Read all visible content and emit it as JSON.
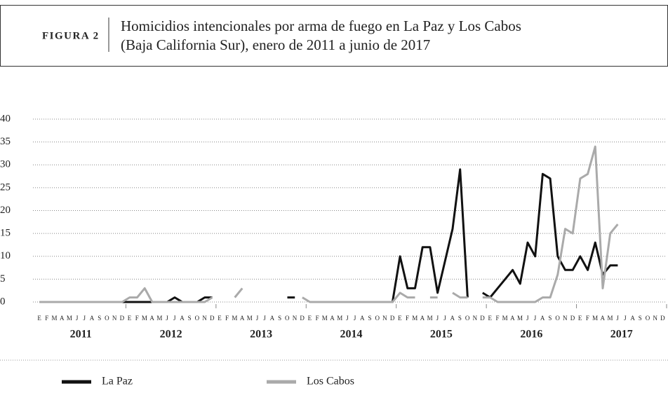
{
  "chart_data": {
    "type": "line",
    "figure_label": "FIGURA 2",
    "title": [
      "Homicidios intencionales por arma de fuego en La Paz y Los Cabos",
      "(Baja California Sur), enero de 2011 a junio de 2017"
    ],
    "years": [
      "2011",
      "2012",
      "2013",
      "2014",
      "2015",
      "2016",
      "2017"
    ],
    "month_labels": [
      "E",
      "F",
      "M",
      "A",
      "M",
      "J",
      "J",
      "A",
      "S",
      "O",
      "N",
      "D"
    ],
    "ylim": [
      0,
      40
    ],
    "yticks": [
      0,
      5,
      10,
      15,
      20,
      25,
      30,
      35,
      40
    ],
    "grid": true,
    "series": [
      {
        "name": "La Paz",
        "color": "#111111",
        "values": [
          0,
          0,
          0,
          0,
          0,
          0,
          0,
          0,
          0,
          0,
          0,
          0,
          0,
          0,
          0,
          0,
          0,
          0,
          1,
          0,
          0,
          0,
          1,
          1,
          null,
          null,
          null,
          null,
          null,
          null,
          null,
          null,
          null,
          1,
          1,
          null,
          0,
          0,
          0,
          0,
          0,
          0,
          0,
          0,
          0,
          0,
          0,
          0,
          10,
          3,
          3,
          12,
          12,
          2,
          9,
          16,
          29,
          1,
          null,
          2,
          1,
          3,
          5,
          7,
          4,
          13,
          10,
          28,
          27,
          10,
          7,
          7,
          10,
          7,
          13,
          6,
          8,
          8
        ]
      },
      {
        "name": "Los Cabos",
        "color": "#aaaaaa",
        "values": [
          0,
          0,
          0,
          0,
          0,
          0,
          0,
          0,
          0,
          0,
          0,
          0,
          1,
          1,
          3,
          0,
          0,
          0,
          0,
          0,
          0,
          0,
          0,
          1,
          null,
          null,
          1,
          3,
          null,
          null,
          null,
          null,
          null,
          null,
          null,
          1,
          0,
          0,
          0,
          0,
          0,
          0,
          0,
          0,
          0,
          0,
          0,
          0,
          2,
          1,
          1,
          null,
          1,
          1,
          null,
          2,
          1,
          1,
          null,
          1,
          1,
          0,
          0,
          0,
          0,
          0,
          0,
          1,
          1,
          6,
          16,
          15,
          27,
          28,
          34,
          3,
          15,
          17
        ]
      }
    ]
  }
}
